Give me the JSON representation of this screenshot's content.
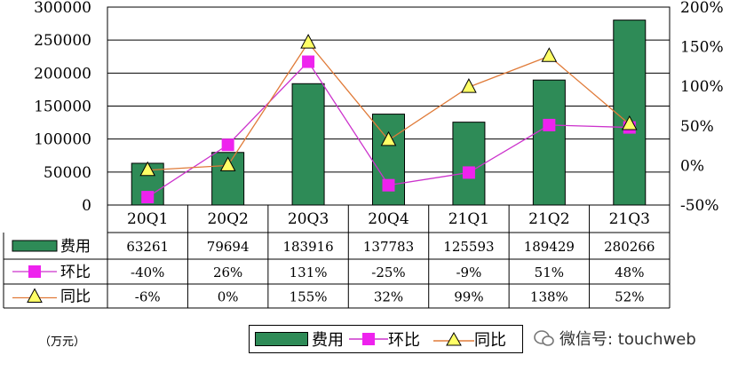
{
  "chart_data": {
    "type": "bar",
    "categories": [
      "20Q1",
      "20Q2",
      "20Q3",
      "20Q4",
      "21Q1",
      "21Q2",
      "21Q3"
    ],
    "series": [
      {
        "name": "费用",
        "type": "bar",
        "axis": "left",
        "color": "#2e8b57",
        "values": [
          63261,
          79694,
          183916,
          137783,
          125593,
          189429,
          280266
        ],
        "labels": [
          "63261",
          "79694",
          "183916",
          "137783",
          "125593",
          "189429",
          "280266"
        ]
      },
      {
        "name": "环比",
        "type": "line",
        "axis": "right",
        "color": "#cc33cc",
        "marker": "square",
        "values": [
          -40,
          26,
          131,
          -25,
          -9,
          51,
          48
        ],
        "labels": [
          "-40%",
          "26%",
          "131%",
          "-25%",
          "-9%",
          "51%",
          "48%"
        ]
      },
      {
        "name": "同比",
        "type": "line",
        "axis": "right",
        "color": "#e07b39",
        "marker": "triangle",
        "values": [
          -6,
          0,
          155,
          32,
          99,
          138,
          52
        ],
        "labels": [
          "-6%",
          "0%",
          "155%",
          "32%",
          "99%",
          "138%",
          "52%"
        ]
      }
    ],
    "ylim_left": [
      0,
      300000
    ],
    "ylim_right": [
      -50,
      200
    ],
    "left_ticks": [
      "0",
      "50000",
      "100000",
      "150000",
      "200000",
      "250000",
      "300000"
    ],
    "right_ticks": [
      "-50%",
      "0%",
      "50%",
      "100%",
      "150%",
      "200%"
    ],
    "grid": true,
    "data_table": true,
    "legend_position": "bottom"
  },
  "unit_label": "（万元）",
  "watermark": "微信号: touchweb"
}
